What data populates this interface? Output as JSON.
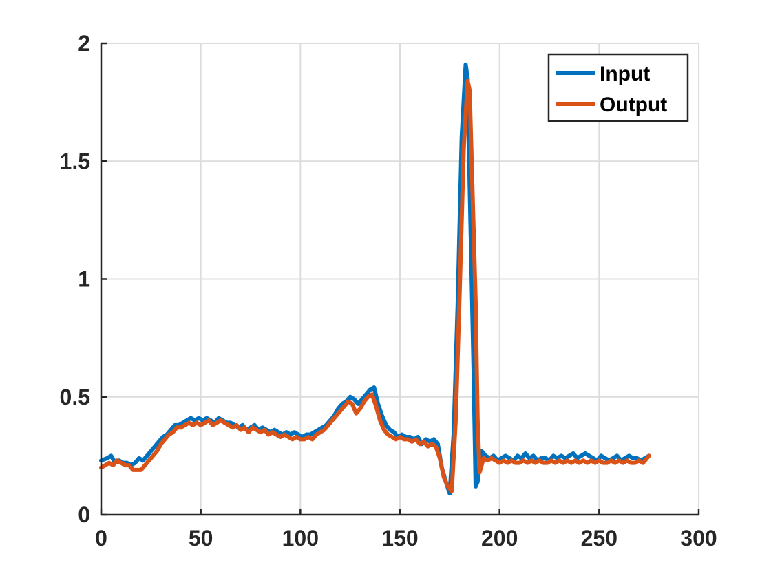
{
  "chart_data": {
    "type": "line",
    "title": "",
    "xlabel": "",
    "ylabel": "",
    "xlim": [
      0,
      300
    ],
    "ylim": [
      0,
      2
    ],
    "xticks": [
      0,
      50,
      100,
      150,
      200,
      250,
      300
    ],
    "yticks": [
      0,
      0.5,
      1,
      1.5,
      2
    ],
    "xtick_labels": [
      "0",
      "50",
      "100",
      "150",
      "200",
      "250",
      "300"
    ],
    "ytick_labels": [
      "0",
      "0.5",
      "1",
      "1.5",
      "2"
    ],
    "grid": true,
    "legend_position": "top-right",
    "series": [
      {
        "name": "Input",
        "color": "#0072BD",
        "points": [
          [
            0,
            0.23
          ],
          [
            3,
            0.24
          ],
          [
            5,
            0.25
          ],
          [
            7,
            0.22
          ],
          [
            9,
            0.23
          ],
          [
            11,
            0.22
          ],
          [
            13,
            0.22
          ],
          [
            15,
            0.21
          ],
          [
            17,
            0.22
          ],
          [
            19,
            0.24
          ],
          [
            21,
            0.23
          ],
          [
            23,
            0.25
          ],
          [
            25,
            0.27
          ],
          [
            27,
            0.29
          ],
          [
            29,
            0.31
          ],
          [
            31,
            0.33
          ],
          [
            33,
            0.34
          ],
          [
            35,
            0.36
          ],
          [
            37,
            0.38
          ],
          [
            39,
            0.38
          ],
          [
            41,
            0.39
          ],
          [
            43,
            0.4
          ],
          [
            45,
            0.41
          ],
          [
            47,
            0.4
          ],
          [
            49,
            0.41
          ],
          [
            51,
            0.4
          ],
          [
            53,
            0.41
          ],
          [
            55,
            0.4
          ],
          [
            57,
            0.39
          ],
          [
            59,
            0.41
          ],
          [
            61,
            0.4
          ],
          [
            63,
            0.39
          ],
          [
            65,
            0.39
          ],
          [
            67,
            0.38
          ],
          [
            69,
            0.37
          ],
          [
            71,
            0.38
          ],
          [
            73,
            0.36
          ],
          [
            75,
            0.37
          ],
          [
            77,
            0.38
          ],
          [
            79,
            0.36
          ],
          [
            81,
            0.37
          ],
          [
            83,
            0.36
          ],
          [
            85,
            0.35
          ],
          [
            87,
            0.36
          ],
          [
            89,
            0.35
          ],
          [
            91,
            0.34
          ],
          [
            93,
            0.35
          ],
          [
            95,
            0.34
          ],
          [
            97,
            0.35
          ],
          [
            99,
            0.34
          ],
          [
            101,
            0.33
          ],
          [
            103,
            0.34
          ],
          [
            105,
            0.34
          ],
          [
            107,
            0.35
          ],
          [
            109,
            0.36
          ],
          [
            111,
            0.37
          ],
          [
            113,
            0.38
          ],
          [
            115,
            0.4
          ],
          [
            117,
            0.42
          ],
          [
            119,
            0.45
          ],
          [
            121,
            0.47
          ],
          [
            123,
            0.48
          ],
          [
            125,
            0.5
          ],
          [
            127,
            0.49
          ],
          [
            129,
            0.47
          ],
          [
            131,
            0.49
          ],
          [
            133,
            0.51
          ],
          [
            135,
            0.53
          ],
          [
            137,
            0.54
          ],
          [
            139,
            0.47
          ],
          [
            141,
            0.42
          ],
          [
            143,
            0.38
          ],
          [
            145,
            0.36
          ],
          [
            147,
            0.35
          ],
          [
            149,
            0.33
          ],
          [
            151,
            0.34
          ],
          [
            153,
            0.33
          ],
          [
            155,
            0.33
          ],
          [
            157,
            0.32
          ],
          [
            159,
            0.33
          ],
          [
            161,
            0.3
          ],
          [
            163,
            0.32
          ],
          [
            165,
            0.31
          ],
          [
            167,
            0.32
          ],
          [
            169,
            0.3
          ],
          [
            171,
            0.2
          ],
          [
            173,
            0.14
          ],
          [
            175,
            0.09
          ],
          [
            177,
            0.35
          ],
          [
            179,
            0.9
          ],
          [
            181,
            1.6
          ],
          [
            183,
            1.91
          ],
          [
            184,
            1.85
          ],
          [
            185,
            1.4
          ],
          [
            187,
            0.6
          ],
          [
            188,
            0.12
          ],
          [
            189,
            0.14
          ],
          [
            191,
            0.27
          ],
          [
            193,
            0.25
          ],
          [
            195,
            0.24
          ],
          [
            197,
            0.25
          ],
          [
            199,
            0.23
          ],
          [
            201,
            0.24
          ],
          [
            203,
            0.25
          ],
          [
            205,
            0.24
          ],
          [
            207,
            0.23
          ],
          [
            209,
            0.25
          ],
          [
            211,
            0.24
          ],
          [
            213,
            0.26
          ],
          [
            215,
            0.24
          ],
          [
            217,
            0.25
          ],
          [
            219,
            0.23
          ],
          [
            221,
            0.24
          ],
          [
            223,
            0.24
          ],
          [
            225,
            0.23
          ],
          [
            227,
            0.25
          ],
          [
            229,
            0.24
          ],
          [
            231,
            0.25
          ],
          [
            233,
            0.24
          ],
          [
            235,
            0.25
          ],
          [
            237,
            0.26
          ],
          [
            239,
            0.24
          ],
          [
            241,
            0.25
          ],
          [
            243,
            0.26
          ],
          [
            245,
            0.25
          ],
          [
            247,
            0.24
          ],
          [
            249,
            0.23
          ],
          [
            251,
            0.25
          ],
          [
            253,
            0.24
          ],
          [
            255,
            0.23
          ],
          [
            257,
            0.24
          ],
          [
            259,
            0.25
          ],
          [
            261,
            0.23
          ],
          [
            263,
            0.24
          ],
          [
            265,
            0.25
          ],
          [
            267,
            0.24
          ],
          [
            269,
            0.24
          ],
          [
            271,
            0.23
          ],
          [
            273,
            0.24
          ],
          [
            275,
            0.25
          ]
        ]
      },
      {
        "name": "Output",
        "color": "#D95319",
        "points": [
          [
            0,
            0.2
          ],
          [
            2,
            0.21
          ],
          [
            4,
            0.22
          ],
          [
            6,
            0.21
          ],
          [
            8,
            0.23
          ],
          [
            10,
            0.22
          ],
          [
            12,
            0.21
          ],
          [
            14,
            0.21
          ],
          [
            16,
            0.19
          ],
          [
            18,
            0.19
          ],
          [
            20,
            0.19
          ],
          [
            22,
            0.21
          ],
          [
            24,
            0.23
          ],
          [
            26,
            0.25
          ],
          [
            28,
            0.27
          ],
          [
            30,
            0.3
          ],
          [
            32,
            0.32
          ],
          [
            34,
            0.34
          ],
          [
            36,
            0.35
          ],
          [
            38,
            0.37
          ],
          [
            40,
            0.37
          ],
          [
            42,
            0.38
          ],
          [
            44,
            0.39
          ],
          [
            46,
            0.38
          ],
          [
            48,
            0.39
          ],
          [
            50,
            0.38
          ],
          [
            52,
            0.39
          ],
          [
            54,
            0.4
          ],
          [
            56,
            0.38
          ],
          [
            58,
            0.39
          ],
          [
            60,
            0.4
          ],
          [
            62,
            0.39
          ],
          [
            64,
            0.38
          ],
          [
            66,
            0.37
          ],
          [
            68,
            0.38
          ],
          [
            70,
            0.36
          ],
          [
            72,
            0.37
          ],
          [
            74,
            0.35
          ],
          [
            76,
            0.37
          ],
          [
            78,
            0.36
          ],
          [
            80,
            0.35
          ],
          [
            82,
            0.36
          ],
          [
            84,
            0.34
          ],
          [
            86,
            0.35
          ],
          [
            88,
            0.34
          ],
          [
            90,
            0.33
          ],
          [
            92,
            0.34
          ],
          [
            94,
            0.33
          ],
          [
            96,
            0.32
          ],
          [
            98,
            0.33
          ],
          [
            100,
            0.32
          ],
          [
            102,
            0.32
          ],
          [
            104,
            0.33
          ],
          [
            106,
            0.32
          ],
          [
            108,
            0.34
          ],
          [
            110,
            0.35
          ],
          [
            112,
            0.36
          ],
          [
            114,
            0.38
          ],
          [
            116,
            0.4
          ],
          [
            118,
            0.42
          ],
          [
            120,
            0.44
          ],
          [
            122,
            0.46
          ],
          [
            124,
            0.48
          ],
          [
            126,
            0.47
          ],
          [
            128,
            0.43
          ],
          [
            130,
            0.45
          ],
          [
            132,
            0.48
          ],
          [
            134,
            0.5
          ],
          [
            136,
            0.51
          ],
          [
            138,
            0.46
          ],
          [
            140,
            0.4
          ],
          [
            142,
            0.36
          ],
          [
            144,
            0.34
          ],
          [
            146,
            0.33
          ],
          [
            148,
            0.32
          ],
          [
            150,
            0.33
          ],
          [
            152,
            0.32
          ],
          [
            154,
            0.32
          ],
          [
            156,
            0.31
          ],
          [
            158,
            0.32
          ],
          [
            160,
            0.3
          ],
          [
            162,
            0.31
          ],
          [
            164,
            0.29
          ],
          [
            166,
            0.3
          ],
          [
            168,
            0.29
          ],
          [
            170,
            0.24
          ],
          [
            172,
            0.16
          ],
          [
            174,
            0.12
          ],
          [
            176,
            0.1
          ],
          [
            178,
            0.4
          ],
          [
            180,
            0.95
          ],
          [
            182,
            1.55
          ],
          [
            184,
            1.84
          ],
          [
            185,
            1.8
          ],
          [
            186,
            1.5
          ],
          [
            188,
            0.9
          ],
          [
            189,
            0.4
          ],
          [
            190,
            0.18
          ],
          [
            192,
            0.24
          ],
          [
            194,
            0.23
          ],
          [
            196,
            0.24
          ],
          [
            198,
            0.23
          ],
          [
            200,
            0.22
          ],
          [
            202,
            0.23
          ],
          [
            204,
            0.22
          ],
          [
            206,
            0.23
          ],
          [
            208,
            0.22
          ],
          [
            210,
            0.22
          ],
          [
            212,
            0.23
          ],
          [
            214,
            0.22
          ],
          [
            216,
            0.23
          ],
          [
            218,
            0.22
          ],
          [
            220,
            0.23
          ],
          [
            222,
            0.22
          ],
          [
            224,
            0.22
          ],
          [
            226,
            0.23
          ],
          [
            228,
            0.22
          ],
          [
            230,
            0.23
          ],
          [
            232,
            0.22
          ],
          [
            234,
            0.23
          ],
          [
            236,
            0.22
          ],
          [
            238,
            0.23
          ],
          [
            240,
            0.22
          ],
          [
            242,
            0.23
          ],
          [
            244,
            0.22
          ],
          [
            246,
            0.23
          ],
          [
            248,
            0.22
          ],
          [
            250,
            0.23
          ],
          [
            252,
            0.22
          ],
          [
            254,
            0.22
          ],
          [
            256,
            0.23
          ],
          [
            258,
            0.22
          ],
          [
            260,
            0.23
          ],
          [
            262,
            0.22
          ],
          [
            264,
            0.23
          ],
          [
            266,
            0.22
          ],
          [
            268,
            0.22
          ],
          [
            270,
            0.23
          ],
          [
            272,
            0.22
          ],
          [
            274,
            0.24
          ],
          [
            275,
            0.25
          ]
        ]
      }
    ]
  }
}
